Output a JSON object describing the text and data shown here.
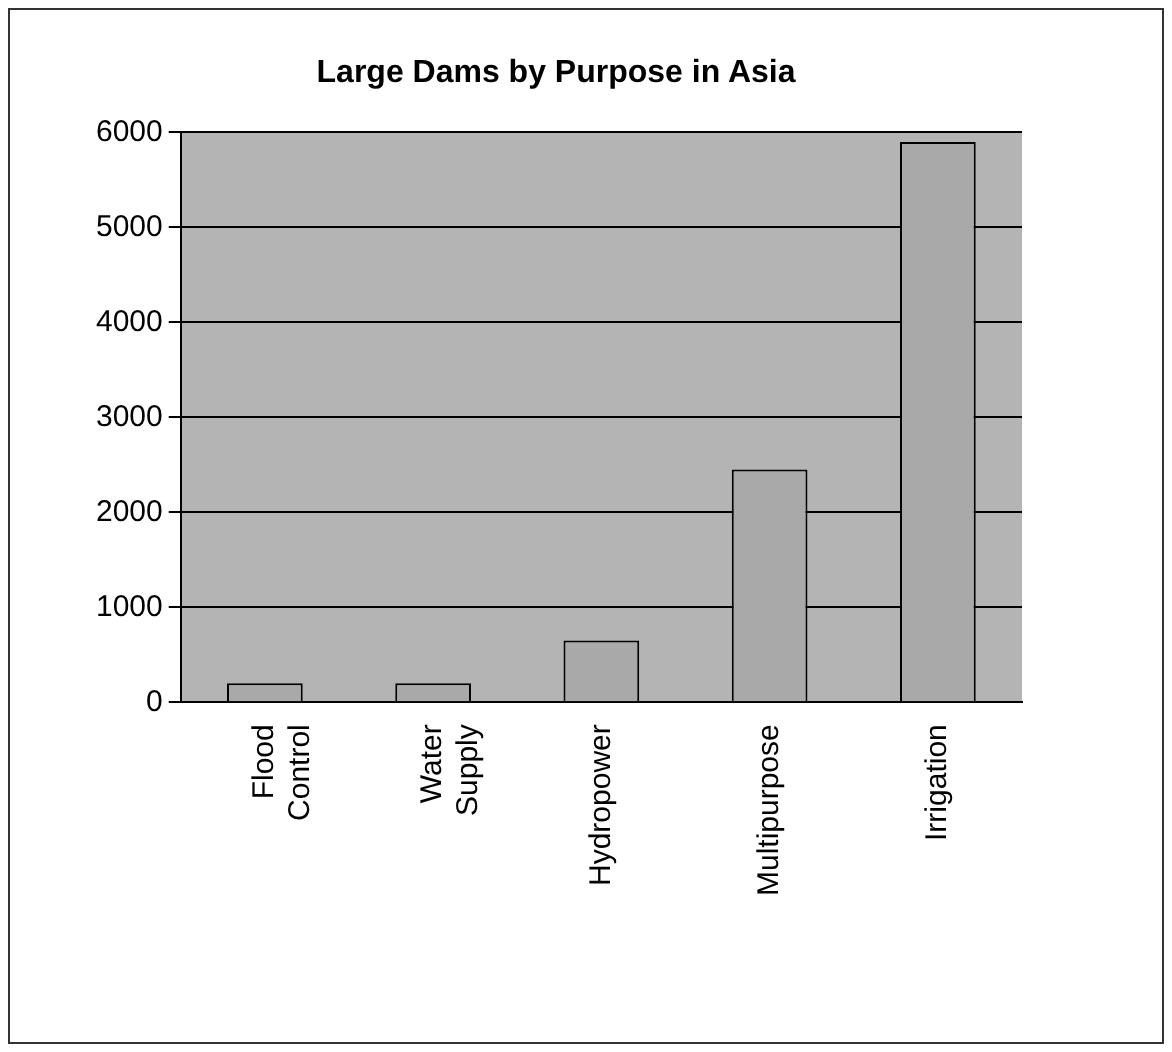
{
  "chart_data": {
    "type": "bar",
    "title": "Large Dams by Purpose in Asia",
    "categories": [
      "Flood Control",
      "Water Supply",
      "Hydropower",
      "Multipurpose",
      "Irrigation"
    ],
    "values": [
      200,
      200,
      650,
      2450,
      5900
    ],
    "color": "#a9a9a9",
    "ylim": [
      0,
      6000
    ],
    "yticks": [
      0,
      1000,
      2000,
      3000,
      4000,
      5000,
      6000
    ],
    "grid": "y",
    "legend": false
  }
}
